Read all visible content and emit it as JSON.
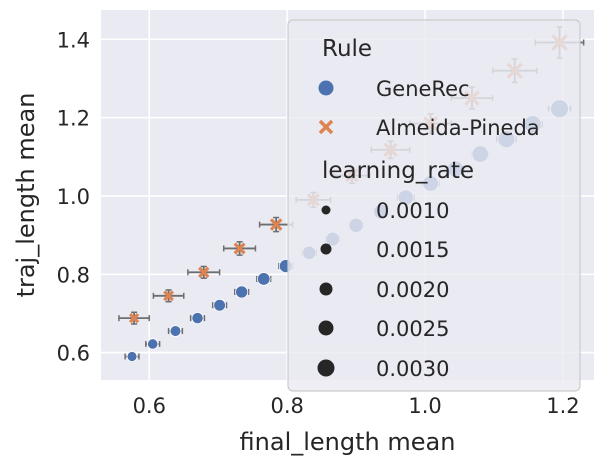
{
  "chart_data": {
    "type": "scatter",
    "xlabel": "final_length mean",
    "ylabel": "traj_length mean",
    "xlim": [
      0.53,
      1.245
    ],
    "ylim": [
      0.53,
      1.475
    ],
    "x_ticks": [
      "0.6",
      "0.8",
      "1.0",
      "1.2"
    ],
    "x_tick_values": [
      0.6,
      0.8,
      1.0,
      1.2
    ],
    "y_ticks": [
      "0.6",
      "0.8",
      "1.0",
      "1.2",
      "1.4"
    ],
    "y_tick_values": [
      0.6,
      0.8,
      1.0,
      1.2,
      1.4
    ],
    "grid": true,
    "legend_position": "upper right",
    "series": [
      {
        "name": "GeneRec",
        "marker": "circle",
        "color": "#4c72b0",
        "points": [
          {
            "x": 0.575,
            "y": 0.59,
            "xerr": 0.01,
            "yerr": 0.01
          },
          {
            "x": 0.605,
            "y": 0.622,
            "xerr": 0.01,
            "yerr": 0.01
          },
          {
            "x": 0.638,
            "y": 0.655,
            "xerr": 0.01,
            "yerr": 0.01
          },
          {
            "x": 0.67,
            "y": 0.688,
            "xerr": 0.01,
            "yerr": 0.01
          },
          {
            "x": 0.702,
            "y": 0.721,
            "xerr": 0.01,
            "yerr": 0.01
          },
          {
            "x": 0.734,
            "y": 0.755,
            "xerr": 0.01,
            "yerr": 0.01
          },
          {
            "x": 0.766,
            "y": 0.788,
            "xerr": 0.01,
            "yerr": 0.01
          },
          {
            "x": 0.798,
            "y": 0.821,
            "xerr": 0.01,
            "yerr": 0.01
          },
          {
            "x": 0.832,
            "y": 0.855,
            "xerr": 0.01,
            "yerr": 0.01
          },
          {
            "x": 0.866,
            "y": 0.89,
            "xerr": 0.01,
            "yerr": 0.012
          },
          {
            "x": 0.9,
            "y": 0.925,
            "xerr": 0.01,
            "yerr": 0.012
          },
          {
            "x": 0.936,
            "y": 0.96,
            "xerr": 0.01,
            "yerr": 0.012
          },
          {
            "x": 0.972,
            "y": 0.996,
            "xerr": 0.012,
            "yerr": 0.012
          },
          {
            "x": 1.008,
            "y": 1.032,
            "xerr": 0.012,
            "yerr": 0.012
          },
          {
            "x": 1.044,
            "y": 1.069,
            "xerr": 0.012,
            "yerr": 0.012
          },
          {
            "x": 1.08,
            "y": 1.107,
            "xerr": 0.012,
            "yerr": 0.012
          },
          {
            "x": 1.118,
            "y": 1.145,
            "xerr": 0.014,
            "yerr": 0.014
          },
          {
            "x": 1.156,
            "y": 1.183,
            "xerr": 0.014,
            "yerr": 0.014
          },
          {
            "x": 1.195,
            "y": 1.223,
            "xerr": 0.016,
            "yerr": 0.016
          }
        ]
      },
      {
        "name": "Almeida-Pineda",
        "marker": "x",
        "color": "#dd8452",
        "points": [
          {
            "x": 0.578,
            "y": 0.688,
            "xerr": 0.022,
            "yerr": 0.015
          },
          {
            "x": 0.628,
            "y": 0.745,
            "xerr": 0.022,
            "yerr": 0.015
          },
          {
            "x": 0.679,
            "y": 0.805,
            "xerr": 0.023,
            "yerr": 0.015
          },
          {
            "x": 0.731,
            "y": 0.866,
            "xerr": 0.023,
            "yerr": 0.017
          },
          {
            "x": 0.784,
            "y": 0.927,
            "xerr": 0.024,
            "yerr": 0.018
          },
          {
            "x": 0.838,
            "y": 0.99,
            "xerr": 0.025,
            "yerr": 0.019
          },
          {
            "x": 0.894,
            "y": 1.052,
            "xerr": 0.026,
            "yerr": 0.02
          },
          {
            "x": 0.95,
            "y": 1.118,
            "xerr": 0.028,
            "yerr": 0.022
          },
          {
            "x": 1.008,
            "y": 1.185,
            "xerr": 0.03,
            "yerr": 0.025
          },
          {
            "x": 1.068,
            "y": 1.25,
            "xerr": 0.03,
            "yerr": 0.028
          },
          {
            "x": 1.13,
            "y": 1.32,
            "xerr": 0.032,
            "yerr": 0.03
          },
          {
            "x": 1.195,
            "y": 1.392,
            "xerr": 0.035,
            "yerr": 0.04
          }
        ]
      }
    ],
    "legend": {
      "hue_title": "Rule",
      "hue_entries": [
        {
          "label": "GeneRec",
          "marker": "circle",
          "color": "#4c72b0"
        },
        {
          "label": "Almeida-Pineda",
          "marker": "x",
          "color": "#dd8452"
        }
      ],
      "size_title": "learning_rate",
      "size_entries": [
        {
          "label": "0.0010",
          "size": 4.5
        },
        {
          "label": "0.0015",
          "size": 5.5
        },
        {
          "label": "0.0020",
          "size": 6.5
        },
        {
          "label": "0.0025",
          "size": 7.5
        },
        {
          "label": "0.0030",
          "size": 8.5
        }
      ]
    }
  }
}
